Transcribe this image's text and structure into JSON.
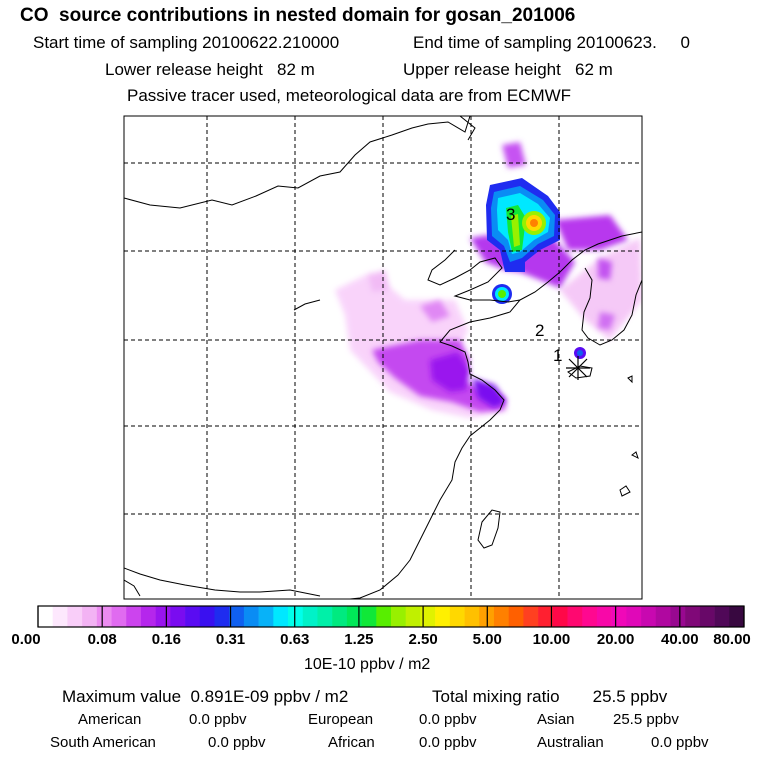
{
  "header": {
    "title": "CO  source contributions in nested domain for gosan_201006",
    "sampling_start": "Start time of sampling 20100622.210000",
    "sampling_end": "End time of sampling 20100623.     0",
    "lower_release": "Lower release height   82 m",
    "upper_release": "Upper release height   62 m",
    "tracer_note": "Passive tracer used, meteorological data are from ECMWF"
  },
  "map": {
    "point_labels": [
      "1",
      "2",
      "3"
    ],
    "receptor_marker": "asterisk",
    "grid": "dashed"
  },
  "colorbar": {
    "tick_labels": [
      "0.00",
      "0.08",
      "0.16",
      "0.31",
      "0.63",
      "1.25",
      "2.50",
      "5.00",
      "10.00",
      "20.00",
      "40.00",
      "80.00"
    ],
    "units": "10E-10 ppbv / m2",
    "colors": [
      "#ffffff",
      "#fde8fd",
      "#f9cef9",
      "#f3b3f4",
      "#ec8cf1",
      "#e06bf0",
      "#cc44ee",
      "#b526ec",
      "#9a14ee",
      "#7a0cf0",
      "#5a0cf2",
      "#3a10f0",
      "#1f2cf0",
      "#1060f0",
      "#0a8cf4",
      "#08b2f8",
      "#00e8ff",
      "#00ffea",
      "#00f2c8",
      "#00f0a8",
      "#00ea80",
      "#00e858",
      "#10e838",
      "#58ee00",
      "#98f000",
      "#c0f000",
      "#e0f200",
      "#fff000",
      "#ffd800",
      "#ffc000",
      "#ffa000",
      "#ff8000",
      "#ff6000",
      "#ff4020",
      "#ff2030",
      "#ff0848",
      "#ff0870",
      "#ff0890",
      "#f808a8",
      "#f008b8",
      "#e008b8",
      "#c808b0",
      "#b008a0",
      "#980890",
      "#800878",
      "#680868",
      "#500858",
      "#380840"
    ]
  },
  "stats": {
    "maximum": "Maximum value  0.891E-09 ppbv / m2",
    "total_mixing": "Total mixing ratio       25.5 ppbv",
    "american_label": "American",
    "american_value": "0.0 ppbv",
    "european_label": "European",
    "european_value": "0.0 ppbv",
    "asian_label": "Asian",
    "asian_value": "25.5 ppbv",
    "south_american_label": "South American",
    "south_american_value": "0.0 ppbv",
    "african_label": "African",
    "african_value": "0.0 ppbv",
    "australian_label": "Australian",
    "australian_value": "0.0 ppbv"
  }
}
